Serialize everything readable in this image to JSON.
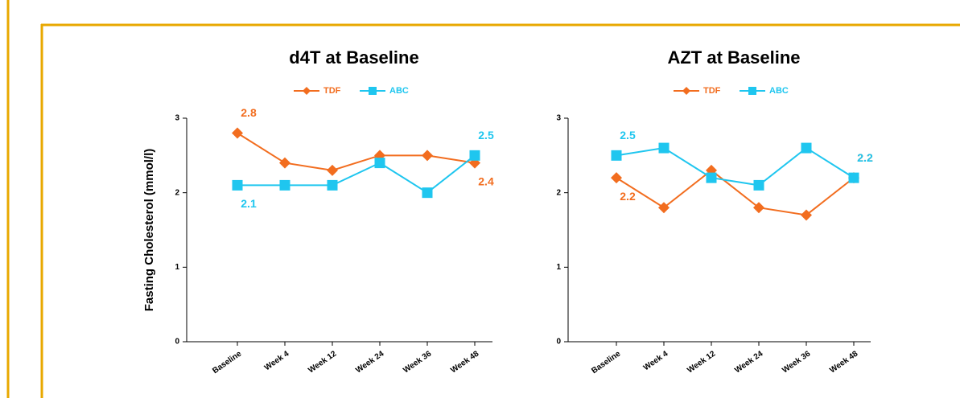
{
  "chart_data": [
    {
      "type": "line",
      "title": "d4T at Baseline",
      "ylabel": "Fasting Cholesterol  (mmol/l)",
      "categories": [
        "Baseline",
        "Week 4",
        "Week 12",
        "Week 24",
        "Week 36",
        "Week 48"
      ],
      "series": [
        {
          "name": "TDF",
          "color": "#f26d1f",
          "marker": "diamond",
          "values": [
            2.8,
            2.4,
            2.3,
            2.5,
            2.5,
            2.4
          ],
          "value_labels": [
            "2.8",
            null,
            null,
            null,
            null,
            "2.4"
          ]
        },
        {
          "name": "ABC",
          "color": "#1fc6ef",
          "marker": "square",
          "values": [
            2.1,
            2.1,
            2.1,
            2.4,
            2.0,
            2.5
          ],
          "value_labels": [
            "2.1",
            null,
            null,
            null,
            null,
            "2.5"
          ]
        }
      ],
      "ylim": [
        0,
        3
      ],
      "yticks": [
        0,
        1,
        2,
        3
      ],
      "legend": "top"
    },
    {
      "type": "line",
      "title": "AZT at Baseline",
      "categories": [
        "Baseline",
        "Week 4",
        "Week 12",
        "Week 24",
        "Week 36",
        "Week 48"
      ],
      "series": [
        {
          "name": "TDF",
          "color": "#f26d1f",
          "marker": "diamond",
          "values": [
            2.2,
            1.8,
            2.3,
            1.8,
            1.7,
            2.2
          ],
          "value_labels": [
            "2.2",
            null,
            null,
            null,
            null,
            "2.2"
          ]
        },
        {
          "name": "ABC",
          "color": "#1fc6ef",
          "marker": "square",
          "values": [
            2.5,
            2.6,
            2.2,
            2.1,
            2.6,
            2.2
          ],
          "value_labels": [
            "2.5",
            null,
            null,
            null,
            null,
            "2.2"
          ]
        }
      ],
      "ylim": [
        0,
        3
      ],
      "yticks": [
        0,
        1,
        2,
        3
      ],
      "legend": "top"
    }
  ]
}
